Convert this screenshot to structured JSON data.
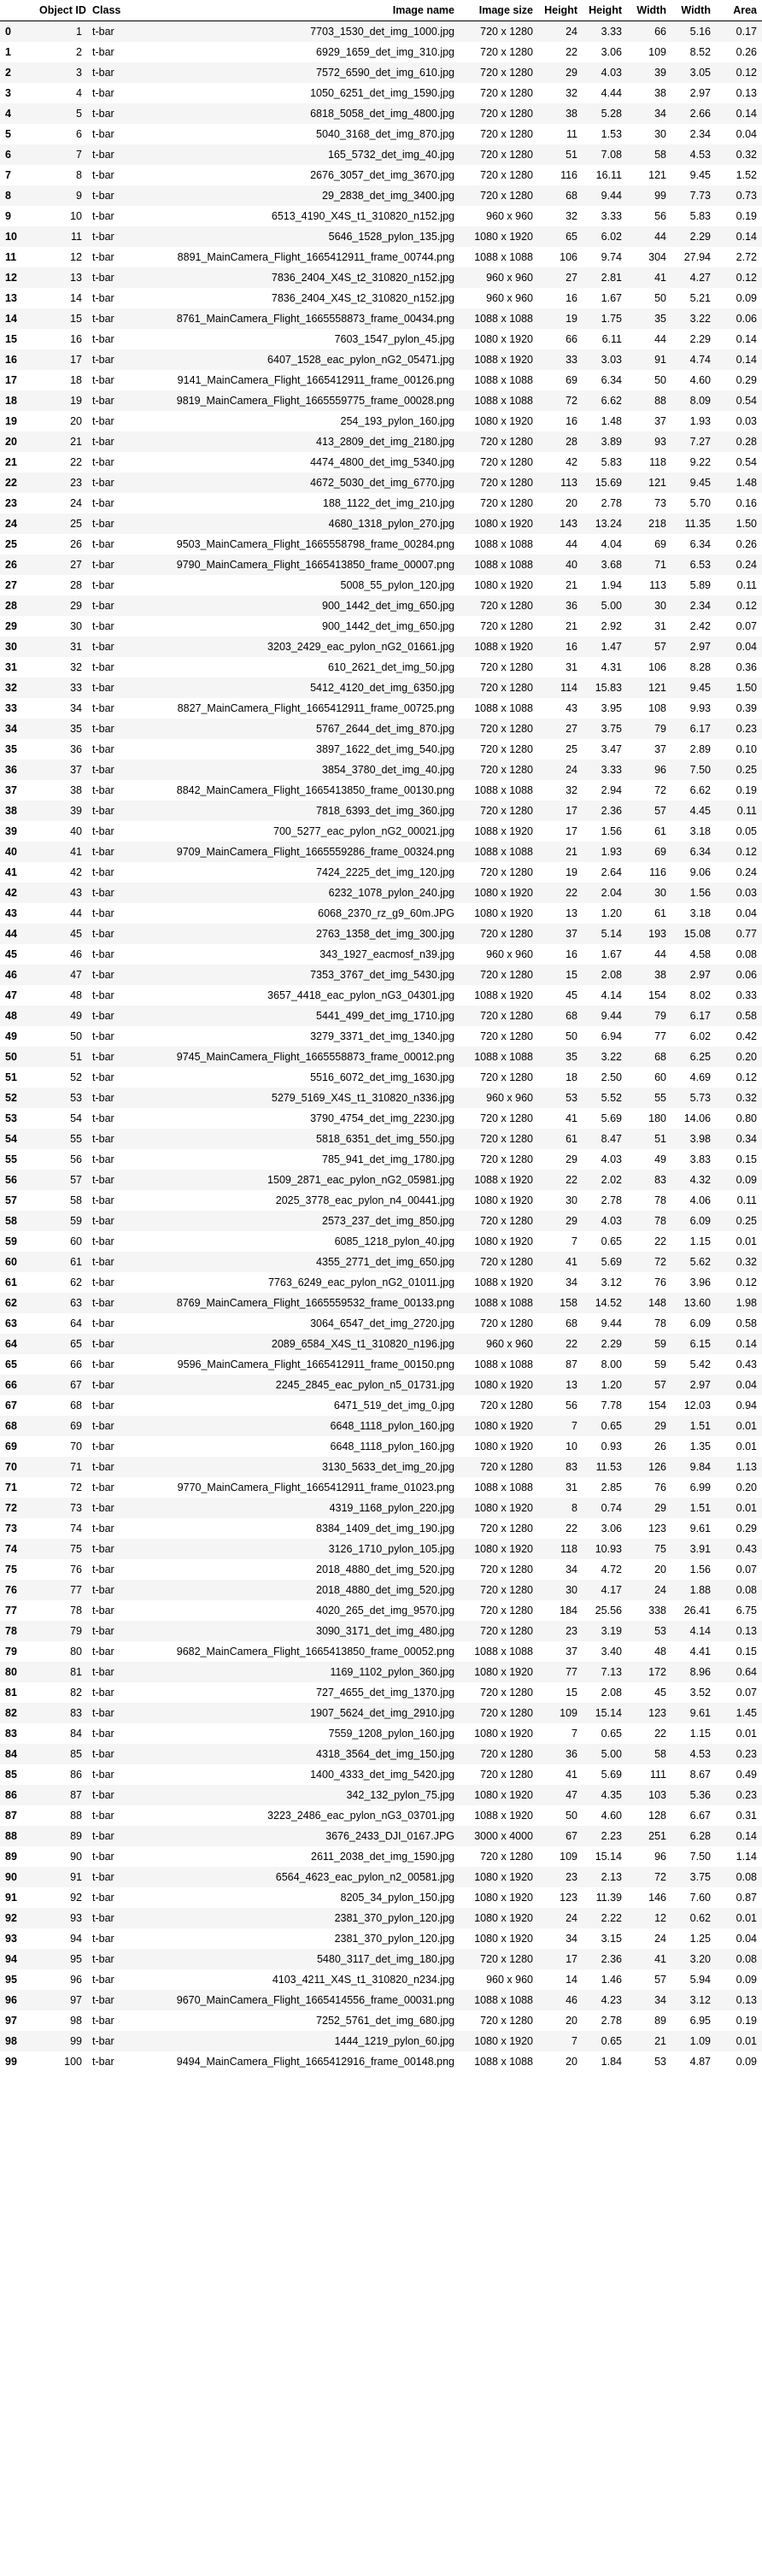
{
  "columns": [
    "",
    "Object ID",
    "Class",
    "Image name",
    "Image size",
    "Height",
    "Height",
    "Width",
    "Width",
    "Area"
  ],
  "rows": [
    [
      "0",
      "1",
      "t-bar",
      "7703_1530_det_img_1000.jpg",
      "720 x 1280",
      "24",
      "3.33",
      "66",
      "5.16",
      "0.17"
    ],
    [
      "1",
      "2",
      "t-bar",
      "6929_1659_det_img_310.jpg",
      "720 x 1280",
      "22",
      "3.06",
      "109",
      "8.52",
      "0.26"
    ],
    [
      "2",
      "3",
      "t-bar",
      "7572_6590_det_img_610.jpg",
      "720 x 1280",
      "29",
      "4.03",
      "39",
      "3.05",
      "0.12"
    ],
    [
      "3",
      "4",
      "t-bar",
      "1050_6251_det_img_1590.jpg",
      "720 x 1280",
      "32",
      "4.44",
      "38",
      "2.97",
      "0.13"
    ],
    [
      "4",
      "5",
      "t-bar",
      "6818_5058_det_img_4800.jpg",
      "720 x 1280",
      "38",
      "5.28",
      "34",
      "2.66",
      "0.14"
    ],
    [
      "5",
      "6",
      "t-bar",
      "5040_3168_det_img_870.jpg",
      "720 x 1280",
      "11",
      "1.53",
      "30",
      "2.34",
      "0.04"
    ],
    [
      "6",
      "7",
      "t-bar",
      "165_5732_det_img_40.jpg",
      "720 x 1280",
      "51",
      "7.08",
      "58",
      "4.53",
      "0.32"
    ],
    [
      "7",
      "8",
      "t-bar",
      "2676_3057_det_img_3670.jpg",
      "720 x 1280",
      "116",
      "16.11",
      "121",
      "9.45",
      "1.52"
    ],
    [
      "8",
      "9",
      "t-bar",
      "29_2838_det_img_3400.jpg",
      "720 x 1280",
      "68",
      "9.44",
      "99",
      "7.73",
      "0.73"
    ],
    [
      "9",
      "10",
      "t-bar",
      "6513_4190_X4S_t1_310820_n152.jpg",
      "960 x 960",
      "32",
      "3.33",
      "56",
      "5.83",
      "0.19"
    ],
    [
      "10",
      "11",
      "t-bar",
      "5646_1528_pylon_135.jpg",
      "1080 x 1920",
      "65",
      "6.02",
      "44",
      "2.29",
      "0.14"
    ],
    [
      "11",
      "12",
      "t-bar",
      "8891_MainCamera_Flight_1665412911_frame_00744.png",
      "1088 x 1088",
      "106",
      "9.74",
      "304",
      "27.94",
      "2.72"
    ],
    [
      "12",
      "13",
      "t-bar",
      "7836_2404_X4S_t2_310820_n152.jpg",
      "960 x 960",
      "27",
      "2.81",
      "41",
      "4.27",
      "0.12"
    ],
    [
      "13",
      "14",
      "t-bar",
      "7836_2404_X4S_t2_310820_n152.jpg",
      "960 x 960",
      "16",
      "1.67",
      "50",
      "5.21",
      "0.09"
    ],
    [
      "14",
      "15",
      "t-bar",
      "8761_MainCamera_Flight_1665558873_frame_00434.png",
      "1088 x 1088",
      "19",
      "1.75",
      "35",
      "3.22",
      "0.06"
    ],
    [
      "15",
      "16",
      "t-bar",
      "7603_1547_pylon_45.jpg",
      "1080 x 1920",
      "66",
      "6.11",
      "44",
      "2.29",
      "0.14"
    ],
    [
      "16",
      "17",
      "t-bar",
      "6407_1528_eac_pylon_nG2_05471.jpg",
      "1088 x 1920",
      "33",
      "3.03",
      "91",
      "4.74",
      "0.14"
    ],
    [
      "17",
      "18",
      "t-bar",
      "9141_MainCamera_Flight_1665412911_frame_00126.png",
      "1088 x 1088",
      "69",
      "6.34",
      "50",
      "4.60",
      "0.29"
    ],
    [
      "18",
      "19",
      "t-bar",
      "9819_MainCamera_Flight_1665559775_frame_00028.png",
      "1088 x 1088",
      "72",
      "6.62",
      "88",
      "8.09",
      "0.54"
    ],
    [
      "19",
      "20",
      "t-bar",
      "254_193_pylon_160.jpg",
      "1080 x 1920",
      "16",
      "1.48",
      "37",
      "1.93",
      "0.03"
    ],
    [
      "20",
      "21",
      "t-bar",
      "413_2809_det_img_2180.jpg",
      "720 x 1280",
      "28",
      "3.89",
      "93",
      "7.27",
      "0.28"
    ],
    [
      "21",
      "22",
      "t-bar",
      "4474_4800_det_img_5340.jpg",
      "720 x 1280",
      "42",
      "5.83",
      "118",
      "9.22",
      "0.54"
    ],
    [
      "22",
      "23",
      "t-bar",
      "4672_5030_det_img_6770.jpg",
      "720 x 1280",
      "113",
      "15.69",
      "121",
      "9.45",
      "1.48"
    ],
    [
      "23",
      "24",
      "t-bar",
      "188_1122_det_img_210.jpg",
      "720 x 1280",
      "20",
      "2.78",
      "73",
      "5.70",
      "0.16"
    ],
    [
      "24",
      "25",
      "t-bar",
      "4680_1318_pylon_270.jpg",
      "1080 x 1920",
      "143",
      "13.24",
      "218",
      "11.35",
      "1.50"
    ],
    [
      "25",
      "26",
      "t-bar",
      "9503_MainCamera_Flight_1665558798_frame_00284.png",
      "1088 x 1088",
      "44",
      "4.04",
      "69",
      "6.34",
      "0.26"
    ],
    [
      "26",
      "27",
      "t-bar",
      "9790_MainCamera_Flight_1665413850_frame_00007.png",
      "1088 x 1088",
      "40",
      "3.68",
      "71",
      "6.53",
      "0.24"
    ],
    [
      "27",
      "28",
      "t-bar",
      "5008_55_pylon_120.jpg",
      "1080 x 1920",
      "21",
      "1.94",
      "113",
      "5.89",
      "0.11"
    ],
    [
      "28",
      "29",
      "t-bar",
      "900_1442_det_img_650.jpg",
      "720 x 1280",
      "36",
      "5.00",
      "30",
      "2.34",
      "0.12"
    ],
    [
      "29",
      "30",
      "t-bar",
      "900_1442_det_img_650.jpg",
      "720 x 1280",
      "21",
      "2.92",
      "31",
      "2.42",
      "0.07"
    ],
    [
      "30",
      "31",
      "t-bar",
      "3203_2429_eac_pylon_nG2_01661.jpg",
      "1088 x 1920",
      "16",
      "1.47",
      "57",
      "2.97",
      "0.04"
    ],
    [
      "31",
      "32",
      "t-bar",
      "610_2621_det_img_50.jpg",
      "720 x 1280",
      "31",
      "4.31",
      "106",
      "8.28",
      "0.36"
    ],
    [
      "32",
      "33",
      "t-bar",
      "5412_4120_det_img_6350.jpg",
      "720 x 1280",
      "114",
      "15.83",
      "121",
      "9.45",
      "1.50"
    ],
    [
      "33",
      "34",
      "t-bar",
      "8827_MainCamera_Flight_1665412911_frame_00725.png",
      "1088 x 1088",
      "43",
      "3.95",
      "108",
      "9.93",
      "0.39"
    ],
    [
      "34",
      "35",
      "t-bar",
      "5767_2644_det_img_870.jpg",
      "720 x 1280",
      "27",
      "3.75",
      "79",
      "6.17",
      "0.23"
    ],
    [
      "35",
      "36",
      "t-bar",
      "3897_1622_det_img_540.jpg",
      "720 x 1280",
      "25",
      "3.47",
      "37",
      "2.89",
      "0.10"
    ],
    [
      "36",
      "37",
      "t-bar",
      "3854_3780_det_img_40.jpg",
      "720 x 1280",
      "24",
      "3.33",
      "96",
      "7.50",
      "0.25"
    ],
    [
      "37",
      "38",
      "t-bar",
      "8842_MainCamera_Flight_1665413850_frame_00130.png",
      "1088 x 1088",
      "32",
      "2.94",
      "72",
      "6.62",
      "0.19"
    ],
    [
      "38",
      "39",
      "t-bar",
      "7818_6393_det_img_360.jpg",
      "720 x 1280",
      "17",
      "2.36",
      "57",
      "4.45",
      "0.11"
    ],
    [
      "39",
      "40",
      "t-bar",
      "700_5277_eac_pylon_nG2_00021.jpg",
      "1088 x 1920",
      "17",
      "1.56",
      "61",
      "3.18",
      "0.05"
    ],
    [
      "40",
      "41",
      "t-bar",
      "9709_MainCamera_Flight_1665559286_frame_00324.png",
      "1088 x 1088",
      "21",
      "1.93",
      "69",
      "6.34",
      "0.12"
    ],
    [
      "41",
      "42",
      "t-bar",
      "7424_2225_det_img_120.jpg",
      "720 x 1280",
      "19",
      "2.64",
      "116",
      "9.06",
      "0.24"
    ],
    [
      "42",
      "43",
      "t-bar",
      "6232_1078_pylon_240.jpg",
      "1080 x 1920",
      "22",
      "2.04",
      "30",
      "1.56",
      "0.03"
    ],
    [
      "43",
      "44",
      "t-bar",
      "6068_2370_rz_g9_60m.JPG",
      "1080 x 1920",
      "13",
      "1.20",
      "61",
      "3.18",
      "0.04"
    ],
    [
      "44",
      "45",
      "t-bar",
      "2763_1358_det_img_300.jpg",
      "720 x 1280",
      "37",
      "5.14",
      "193",
      "15.08",
      "0.77"
    ],
    [
      "45",
      "46",
      "t-bar",
      "343_1927_eacmosf_n39.jpg",
      "960 x 960",
      "16",
      "1.67",
      "44",
      "4.58",
      "0.08"
    ],
    [
      "46",
      "47",
      "t-bar",
      "7353_3767_det_img_5430.jpg",
      "720 x 1280",
      "15",
      "2.08",
      "38",
      "2.97",
      "0.06"
    ],
    [
      "47",
      "48",
      "t-bar",
      "3657_4418_eac_pylon_nG3_04301.jpg",
      "1088 x 1920",
      "45",
      "4.14",
      "154",
      "8.02",
      "0.33"
    ],
    [
      "48",
      "49",
      "t-bar",
      "5441_499_det_img_1710.jpg",
      "720 x 1280",
      "68",
      "9.44",
      "79",
      "6.17",
      "0.58"
    ],
    [
      "49",
      "50",
      "t-bar",
      "3279_3371_det_img_1340.jpg",
      "720 x 1280",
      "50",
      "6.94",
      "77",
      "6.02",
      "0.42"
    ],
    [
      "50",
      "51",
      "t-bar",
      "9745_MainCamera_Flight_1665558873_frame_00012.png",
      "1088 x 1088",
      "35",
      "3.22",
      "68",
      "6.25",
      "0.20"
    ],
    [
      "51",
      "52",
      "t-bar",
      "5516_6072_det_img_1630.jpg",
      "720 x 1280",
      "18",
      "2.50",
      "60",
      "4.69",
      "0.12"
    ],
    [
      "52",
      "53",
      "t-bar",
      "5279_5169_X4S_t1_310820_n336.jpg",
      "960 x 960",
      "53",
      "5.52",
      "55",
      "5.73",
      "0.32"
    ],
    [
      "53",
      "54",
      "t-bar",
      "3790_4754_det_img_2230.jpg",
      "720 x 1280",
      "41",
      "5.69",
      "180",
      "14.06",
      "0.80"
    ],
    [
      "54",
      "55",
      "t-bar",
      "5818_6351_det_img_550.jpg",
      "720 x 1280",
      "61",
      "8.47",
      "51",
      "3.98",
      "0.34"
    ],
    [
      "55",
      "56",
      "t-bar",
      "785_941_det_img_1780.jpg",
      "720 x 1280",
      "29",
      "4.03",
      "49",
      "3.83",
      "0.15"
    ],
    [
      "56",
      "57",
      "t-bar",
      "1509_2871_eac_pylon_nG2_05981.jpg",
      "1088 x 1920",
      "22",
      "2.02",
      "83",
      "4.32",
      "0.09"
    ],
    [
      "57",
      "58",
      "t-bar",
      "2025_3778_eac_pylon_n4_00441.jpg",
      "1080 x 1920",
      "30",
      "2.78",
      "78",
      "4.06",
      "0.11"
    ],
    [
      "58",
      "59",
      "t-bar",
      "2573_237_det_img_850.jpg",
      "720 x 1280",
      "29",
      "4.03",
      "78",
      "6.09",
      "0.25"
    ],
    [
      "59",
      "60",
      "t-bar",
      "6085_1218_pylon_40.jpg",
      "1080 x 1920",
      "7",
      "0.65",
      "22",
      "1.15",
      "0.01"
    ],
    [
      "60",
      "61",
      "t-bar",
      "4355_2771_det_img_650.jpg",
      "720 x 1280",
      "41",
      "5.69",
      "72",
      "5.62",
      "0.32"
    ],
    [
      "61",
      "62",
      "t-bar",
      "7763_6249_eac_pylon_nG2_01011.jpg",
      "1088 x 1920",
      "34",
      "3.12",
      "76",
      "3.96",
      "0.12"
    ],
    [
      "62",
      "63",
      "t-bar",
      "8769_MainCamera_Flight_1665559532_frame_00133.png",
      "1088 x 1088",
      "158",
      "14.52",
      "148",
      "13.60",
      "1.98"
    ],
    [
      "63",
      "64",
      "t-bar",
      "3064_6547_det_img_2720.jpg",
      "720 x 1280",
      "68",
      "9.44",
      "78",
      "6.09",
      "0.58"
    ],
    [
      "64",
      "65",
      "t-bar",
      "2089_6584_X4S_t1_310820_n196.jpg",
      "960 x 960",
      "22",
      "2.29",
      "59",
      "6.15",
      "0.14"
    ],
    [
      "65",
      "66",
      "t-bar",
      "9596_MainCamera_Flight_1665412911_frame_00150.png",
      "1088 x 1088",
      "87",
      "8.00",
      "59",
      "5.42",
      "0.43"
    ],
    [
      "66",
      "67",
      "t-bar",
      "2245_2845_eac_pylon_n5_01731.jpg",
      "1080 x 1920",
      "13",
      "1.20",
      "57",
      "2.97",
      "0.04"
    ],
    [
      "67",
      "68",
      "t-bar",
      "6471_519_det_img_0.jpg",
      "720 x 1280",
      "56",
      "7.78",
      "154",
      "12.03",
      "0.94"
    ],
    [
      "68",
      "69",
      "t-bar",
      "6648_1118_pylon_160.jpg",
      "1080 x 1920",
      "7",
      "0.65",
      "29",
      "1.51",
      "0.01"
    ],
    [
      "69",
      "70",
      "t-bar",
      "6648_1118_pylon_160.jpg",
      "1080 x 1920",
      "10",
      "0.93",
      "26",
      "1.35",
      "0.01"
    ],
    [
      "70",
      "71",
      "t-bar",
      "3130_5633_det_img_20.jpg",
      "720 x 1280",
      "83",
      "11.53",
      "126",
      "9.84",
      "1.13"
    ],
    [
      "71",
      "72",
      "t-bar",
      "9770_MainCamera_Flight_1665412911_frame_01023.png",
      "1088 x 1088",
      "31",
      "2.85",
      "76",
      "6.99",
      "0.20"
    ],
    [
      "72",
      "73",
      "t-bar",
      "4319_1168_pylon_220.jpg",
      "1080 x 1920",
      "8",
      "0.74",
      "29",
      "1.51",
      "0.01"
    ],
    [
      "73",
      "74",
      "t-bar",
      "8384_1409_det_img_190.jpg",
      "720 x 1280",
      "22",
      "3.06",
      "123",
      "9.61",
      "0.29"
    ],
    [
      "74",
      "75",
      "t-bar",
      "3126_1710_pylon_105.jpg",
      "1080 x 1920",
      "118",
      "10.93",
      "75",
      "3.91",
      "0.43"
    ],
    [
      "75",
      "76",
      "t-bar",
      "2018_4880_det_img_520.jpg",
      "720 x 1280",
      "34",
      "4.72",
      "20",
      "1.56",
      "0.07"
    ],
    [
      "76",
      "77",
      "t-bar",
      "2018_4880_det_img_520.jpg",
      "720 x 1280",
      "30",
      "4.17",
      "24",
      "1.88",
      "0.08"
    ],
    [
      "77",
      "78",
      "t-bar",
      "4020_265_det_img_9570.jpg",
      "720 x 1280",
      "184",
      "25.56",
      "338",
      "26.41",
      "6.75"
    ],
    [
      "78",
      "79",
      "t-bar",
      "3090_3171_det_img_480.jpg",
      "720 x 1280",
      "23",
      "3.19",
      "53",
      "4.14",
      "0.13"
    ],
    [
      "79",
      "80",
      "t-bar",
      "9682_MainCamera_Flight_1665413850_frame_00052.png",
      "1088 x 1088",
      "37",
      "3.40",
      "48",
      "4.41",
      "0.15"
    ],
    [
      "80",
      "81",
      "t-bar",
      "1169_1102_pylon_360.jpg",
      "1080 x 1920",
      "77",
      "7.13",
      "172",
      "8.96",
      "0.64"
    ],
    [
      "81",
      "82",
      "t-bar",
      "727_4655_det_img_1370.jpg",
      "720 x 1280",
      "15",
      "2.08",
      "45",
      "3.52",
      "0.07"
    ],
    [
      "82",
      "83",
      "t-bar",
      "1907_5624_det_img_2910.jpg",
      "720 x 1280",
      "109",
      "15.14",
      "123",
      "9.61",
      "1.45"
    ],
    [
      "83",
      "84",
      "t-bar",
      "7559_1208_pylon_160.jpg",
      "1080 x 1920",
      "7",
      "0.65",
      "22",
      "1.15",
      "0.01"
    ],
    [
      "84",
      "85",
      "t-bar",
      "4318_3564_det_img_150.jpg",
      "720 x 1280",
      "36",
      "5.00",
      "58",
      "4.53",
      "0.23"
    ],
    [
      "85",
      "86",
      "t-bar",
      "1400_4333_det_img_5420.jpg",
      "720 x 1280",
      "41",
      "5.69",
      "111",
      "8.67",
      "0.49"
    ],
    [
      "86",
      "87",
      "t-bar",
      "342_132_pylon_75.jpg",
      "1080 x 1920",
      "47",
      "4.35",
      "103",
      "5.36",
      "0.23"
    ],
    [
      "87",
      "88",
      "t-bar",
      "3223_2486_eac_pylon_nG3_03701.jpg",
      "1088 x 1920",
      "50",
      "4.60",
      "128",
      "6.67",
      "0.31"
    ],
    [
      "88",
      "89",
      "t-bar",
      "3676_2433_DJI_0167.JPG",
      "3000 x 4000",
      "67",
      "2.23",
      "251",
      "6.28",
      "0.14"
    ],
    [
      "89",
      "90",
      "t-bar",
      "2611_2038_det_img_1590.jpg",
      "720 x 1280",
      "109",
      "15.14",
      "96",
      "7.50",
      "1.14"
    ],
    [
      "90",
      "91",
      "t-bar",
      "6564_4623_eac_pylon_n2_00581.jpg",
      "1080 x 1920",
      "23",
      "2.13",
      "72",
      "3.75",
      "0.08"
    ],
    [
      "91",
      "92",
      "t-bar",
      "8205_34_pylon_150.jpg",
      "1080 x 1920",
      "123",
      "11.39",
      "146",
      "7.60",
      "0.87"
    ],
    [
      "92",
      "93",
      "t-bar",
      "2381_370_pylon_120.jpg",
      "1080 x 1920",
      "24",
      "2.22",
      "12",
      "0.62",
      "0.01"
    ],
    [
      "93",
      "94",
      "t-bar",
      "2381_370_pylon_120.jpg",
      "1080 x 1920",
      "34",
      "3.15",
      "24",
      "1.25",
      "0.04"
    ],
    [
      "94",
      "95",
      "t-bar",
      "5480_3117_det_img_180.jpg",
      "720 x 1280",
      "17",
      "2.36",
      "41",
      "3.20",
      "0.08"
    ],
    [
      "95",
      "96",
      "t-bar",
      "4103_4211_X4S_t1_310820_n234.jpg",
      "960 x 960",
      "14",
      "1.46",
      "57",
      "5.94",
      "0.09"
    ],
    [
      "96",
      "97",
      "t-bar",
      "9670_MainCamera_Flight_1665414556_frame_00031.png",
      "1088 x 1088",
      "46",
      "4.23",
      "34",
      "3.12",
      "0.13"
    ],
    [
      "97",
      "98",
      "t-bar",
      "7252_5761_det_img_680.jpg",
      "720 x 1280",
      "20",
      "2.78",
      "89",
      "6.95",
      "0.19"
    ],
    [
      "98",
      "99",
      "t-bar",
      "1444_1219_pylon_60.jpg",
      "1080 x 1920",
      "7",
      "0.65",
      "21",
      "1.09",
      "0.01"
    ],
    [
      "99",
      "100",
      "t-bar",
      "9494_MainCamera_Flight_1665412916_frame_00148.png",
      "1088 x 1088",
      "20",
      "1.84",
      "53",
      "4.87",
      "0.09"
    ]
  ]
}
